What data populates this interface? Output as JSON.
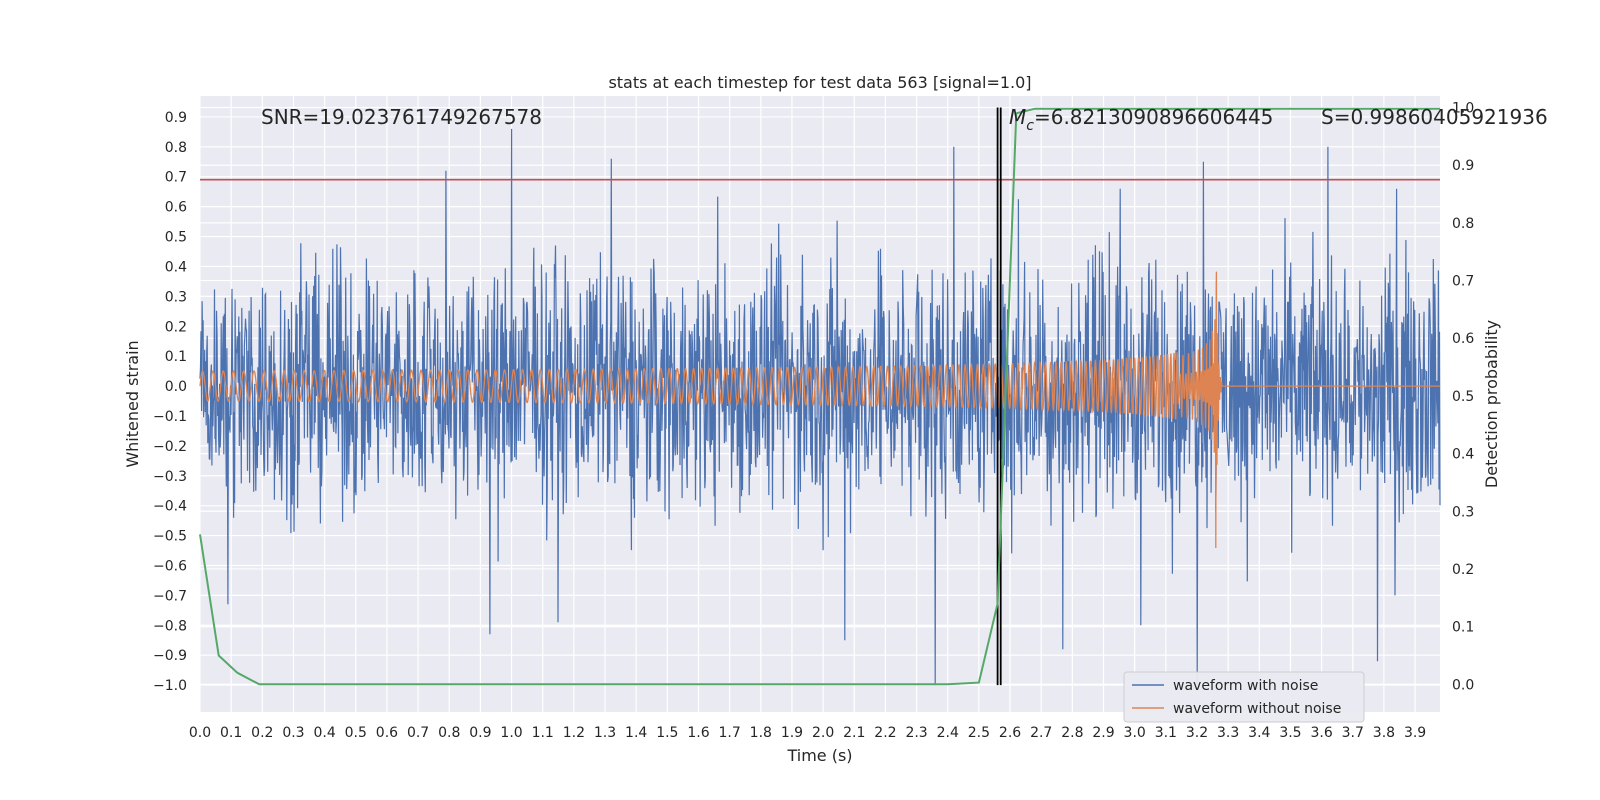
{
  "chart_data": {
    "type": "line",
    "title": "stats at each timestep for test data 563 [signal=1.0]",
    "xlabel": "Time (s)",
    "ylabel": "Whitened strain",
    "y2label": "Detection probability",
    "xlim": [
      0.0,
      3.98
    ],
    "ylim": [
      -1.09,
      0.97
    ],
    "y2lim": [
      -0.048,
      1.02
    ],
    "xticks": [
      0.0,
      0.1,
      0.2,
      0.3,
      0.4,
      0.5,
      0.6,
      0.7,
      0.8,
      0.9,
      1.0,
      1.1,
      1.2,
      1.3,
      1.4,
      1.5,
      1.6,
      1.7,
      1.8,
      1.9,
      2.0,
      2.1,
      2.2,
      2.3,
      2.4,
      2.5,
      2.6,
      2.7,
      2.8,
      2.9,
      3.0,
      3.1,
      3.2,
      3.3,
      3.4,
      3.5,
      3.6,
      3.7,
      3.8,
      3.9
    ],
    "yticks": [
      -1.0,
      -0.9,
      -0.8,
      -0.7,
      -0.6,
      -0.5,
      -0.4,
      -0.3,
      -0.2,
      -0.1,
      0.0,
      0.1,
      0.2,
      0.3,
      0.4,
      0.5,
      0.6,
      0.7,
      0.8,
      0.9
    ],
    "y2ticks": [
      0.0,
      0.1,
      0.2,
      0.3,
      0.4,
      0.5,
      0.6,
      0.7,
      0.8,
      0.9,
      1.0
    ],
    "grid": true,
    "legend_location": "lower-right",
    "annotations": {
      "snr": "SNR=19.023761749267578",
      "mc_symbol": "M",
      "mc_subscript": "c",
      "mc_value": "=6.8213090896606445",
      "s": "S=0.99860405921936"
    },
    "threshold_line": {
      "y": 0.69,
      "color": "#c44e52"
    },
    "event_time_lines": [
      2.56,
      2.57
    ],
    "series": [
      {
        "name": "waveform with noise",
        "color": "#4c72b0",
        "kind": "noise",
        "range": [
          -0.45,
          0.4
        ],
        "peaks": [
          {
            "x": 1.0,
            "y": 0.86
          },
          {
            "x": 0.79,
            "y": 0.72
          },
          {
            "x": 1.32,
            "y": 0.76
          },
          {
            "x": 2.42,
            "y": 0.8
          },
          {
            "x": 3.22,
            "y": 0.75
          },
          {
            "x": 3.62,
            "y": 0.8
          },
          {
            "x": 0.93,
            "y": -0.83
          },
          {
            "x": 1.15,
            "y": -0.79
          },
          {
            "x": 2.07,
            "y": -0.85
          },
          {
            "x": 2.36,
            "y": -1.0
          },
          {
            "x": 2.77,
            "y": -0.88
          },
          {
            "x": 3.02,
            "y": -0.8
          },
          {
            "x": 3.2,
            "y": -1.0
          },
          {
            "x": 3.78,
            "y": -0.92
          },
          {
            "x": 0.09,
            "y": -0.73
          }
        ]
      },
      {
        "name": "waveform without noise",
        "color": "#dd8452",
        "kind": "chirp",
        "t_merger": 3.26,
        "amplitude_start": 0.05,
        "amplitude_peak": 0.62,
        "frequency_start": 30,
        "frequency_end": 250
      },
      {
        "name": "detection probability",
        "color": "#55a868",
        "axis": "right",
        "x": [
          0.0,
          0.06,
          0.12,
          0.19,
          0.25,
          0.5,
          1.0,
          1.5,
          2.0,
          2.4,
          2.5,
          2.56,
          2.62,
          2.68,
          3.0,
          3.5,
          3.98
        ],
        "y": [
          0.26,
          0.05,
          0.02,
          0.0,
          0.0,
          0.0,
          0.0,
          0.0,
          0.0,
          0.0,
          0.003,
          0.14,
          0.99,
          0.998,
          0.998,
          0.998,
          0.998
        ]
      }
    ],
    "legend": [
      "waveform with noise",
      "waveform without noise"
    ]
  }
}
